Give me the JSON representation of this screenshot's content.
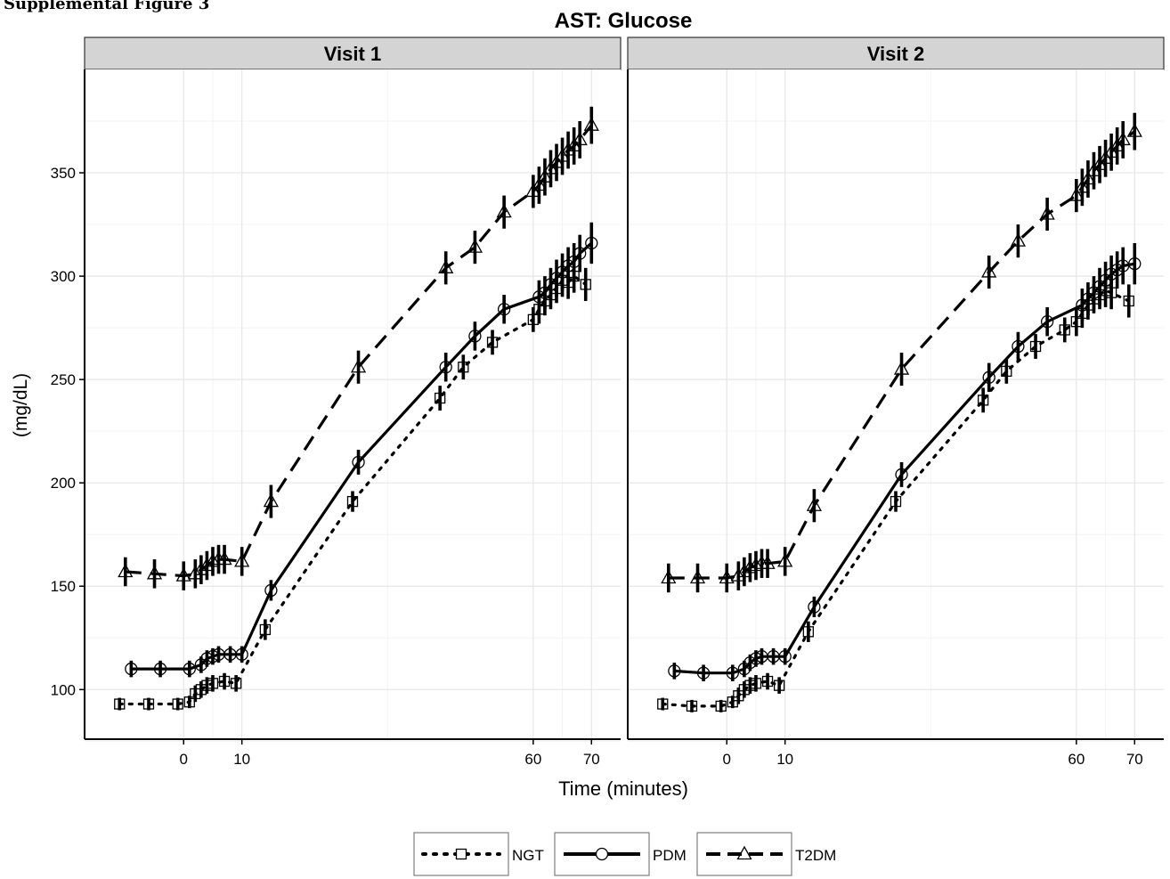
{
  "page": {
    "top_caption": "Supplemental Figure 3"
  },
  "chart_data": {
    "type": "line",
    "title": "AST: Glucose",
    "xlabel": "Time (minutes)",
    "ylabel": "(mg/dL)",
    "ylim": [
      76,
      400
    ],
    "xlim": [
      -17,
      75
    ],
    "x_ticks": [
      0,
      10,
      60,
      70
    ],
    "y_ticks": [
      100,
      150,
      200,
      250,
      300,
      350
    ],
    "grid": true,
    "legend_placement": "bottom",
    "panels": [
      {
        "label": "Visit 1",
        "series": [
          {
            "name": "NGT",
            "line": "dotted",
            "marker": "square",
            "x": [
              -11,
              -6,
              -1,
              1,
              2,
              3,
              4,
              5,
              7,
              9,
              14,
              29,
              44,
              48,
              53,
              60,
              61,
              62,
              63,
              64,
              65,
              66,
              67,
              69
            ],
            "y": [
              93,
              93,
              93,
              94,
              98,
              100,
              102,
              103,
              104,
              103,
              129,
              191,
              241,
              256,
              268,
              279,
              284,
              288,
              291,
              294,
              298,
              297,
              300,
              296
            ],
            "err": [
              3,
              3,
              3,
              3,
              4,
              4,
              4,
              4,
              4,
              4,
              5,
              5,
              6,
              6,
              6,
              6,
              7,
              7,
              7,
              7,
              8,
              8,
              8,
              8
            ]
          },
          {
            "name": "PDM",
            "line": "solid",
            "marker": "circle",
            "x": [
              -9,
              -4,
              1,
              3,
              4,
              5,
              6,
              8,
              10,
              15,
              30,
              45,
              50,
              55,
              61,
              62,
              63,
              64,
              65,
              66,
              67,
              68,
              70
            ],
            "y": [
              110,
              110,
              110,
              112,
              115,
              116,
              117,
              117,
              117,
              148,
              210,
              256,
              271,
              284,
              290,
              292,
              296,
              299,
              302,
              305,
              307,
              311,
              316
            ],
            "err": [
              4,
              4,
              4,
              4,
              4,
              4,
              4,
              4,
              4,
              5,
              6,
              7,
              7,
              7,
              8,
              8,
              8,
              9,
              9,
              9,
              9,
              9,
              10
            ]
          },
          {
            "name": "T2DM",
            "line": "dashed",
            "marker": "triangle",
            "x": [
              -10,
              -5,
              0,
              2,
              3,
              4,
              5,
              6,
              7,
              10,
              15,
              30,
              45,
              50,
              55,
              60,
              61,
              62,
              63,
              64,
              65,
              66,
              67,
              68,
              70
            ],
            "y": [
              157,
              156,
              155,
              156,
              158,
              160,
              162,
              163,
              163,
              162,
              191,
              256,
              304,
              314,
              331,
              341,
              344,
              348,
              352,
              355,
              358,
              361,
              363,
              366,
              373
            ],
            "err": [
              7,
              7,
              7,
              7,
              7,
              7,
              7,
              7,
              7,
              7,
              8,
              8,
              8,
              8,
              8,
              8,
              9,
              9,
              9,
              9,
              9,
              9,
              9,
              9,
              9
            ]
          }
        ]
      },
      {
        "label": "Visit 2",
        "series": [
          {
            "name": "NGT",
            "line": "dotted",
            "marker": "square",
            "x": [
              -11,
              -6,
              -1,
              1,
              2,
              3,
              4,
              5,
              7,
              9,
              14,
              29,
              44,
              48,
              53,
              58,
              60,
              61,
              62,
              63,
              64,
              65,
              66,
              69
            ],
            "y": [
              93,
              92,
              92,
              94,
              97,
              100,
              102,
              103,
              104,
              102,
              128,
              191,
              240,
              254,
              266,
              274,
              278,
              282,
              286,
              289,
              291,
              293,
              292,
              288
            ],
            "err": [
              3,
              3,
              3,
              3,
              4,
              4,
              4,
              4,
              4,
              4,
              5,
              5,
              6,
              6,
              6,
              6,
              7,
              7,
              7,
              7,
              7,
              8,
              8,
              8
            ]
          },
          {
            "name": "PDM",
            "line": "solid",
            "marker": "circle",
            "x": [
              -9,
              -4,
              1,
              3,
              4,
              5,
              6,
              8,
              10,
              15,
              30,
              45,
              50,
              55,
              61,
              62,
              63,
              64,
              65,
              66,
              67,
              68,
              70
            ],
            "y": [
              109,
              108,
              108,
              110,
              113,
              115,
              116,
              116,
              116,
              140,
              204,
              251,
              266,
              278,
              286,
              289,
              292,
              295,
              298,
              301,
              303,
              305,
              306
            ],
            "err": [
              4,
              4,
              4,
              4,
              4,
              4,
              4,
              4,
              4,
              5,
              6,
              7,
              7,
              7,
              8,
              8,
              8,
              9,
              9,
              9,
              9,
              9,
              10
            ]
          },
          {
            "name": "T2DM",
            "line": "dashed",
            "marker": "triangle",
            "x": [
              -10,
              -5,
              0,
              2,
              3,
              4,
              5,
              6,
              7,
              10,
              15,
              30,
              45,
              50,
              55,
              60,
              61,
              62,
              63,
              64,
              65,
              66,
              67,
              68,
              70
            ],
            "y": [
              154,
              154,
              154,
              155,
              157,
              159,
              160,
              161,
              161,
              162,
              189,
              255,
              302,
              317,
              330,
              339,
              343,
              347,
              351,
              354,
              357,
              360,
              363,
              366,
              370
            ],
            "err": [
              7,
              7,
              7,
              7,
              7,
              7,
              7,
              7,
              7,
              7,
              8,
              8,
              8,
              8,
              8,
              8,
              9,
              9,
              9,
              9,
              9,
              9,
              9,
              9,
              9
            ]
          }
        ]
      }
    ]
  }
}
